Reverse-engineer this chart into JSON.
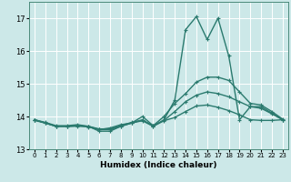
{
  "xlabel": "Humidex (Indice chaleur)",
  "bg_color": "#cce8e8",
  "grid_color": "#ffffff",
  "line_color": "#2a7a6e",
  "xlim": [
    -0.5,
    23.5
  ],
  "ylim": [
    13.0,
    17.5
  ],
  "yticks": [
    13,
    14,
    15,
    16,
    17
  ],
  "xticks": [
    0,
    1,
    2,
    3,
    4,
    5,
    6,
    7,
    8,
    9,
    10,
    11,
    12,
    13,
    14,
    15,
    16,
    17,
    18,
    19,
    20,
    21,
    22,
    23
  ],
  "series": [
    {
      "x": [
        0,
        1,
        2,
        3,
        4,
        5,
        6,
        7,
        8,
        9,
        10,
        11,
        12,
        13,
        14,
        15,
        16,
        17,
        18,
        19,
        20,
        21,
        22,
        23
      ],
      "y": [
        13.9,
        13.8,
        13.7,
        13.7,
        13.7,
        13.7,
        13.55,
        13.55,
        13.7,
        13.8,
        13.9,
        13.7,
        13.9,
        14.5,
        16.65,
        17.05,
        16.35,
        17.0,
        15.85,
        13.9,
        14.3,
        14.3,
        14.1,
        13.9
      ]
    },
    {
      "x": [
        0,
        1,
        2,
        3,
        4,
        5,
        6,
        7,
        8,
        9,
        10,
        11,
        12,
        13,
        14,
        15,
        16,
        17,
        18,
        19,
        20,
        21,
        22,
        23
      ],
      "y": [
        13.9,
        13.8,
        13.7,
        13.7,
        13.72,
        13.7,
        13.6,
        13.65,
        13.75,
        13.8,
        14.0,
        13.72,
        14.0,
        14.4,
        14.7,
        15.05,
        15.2,
        15.2,
        15.1,
        14.75,
        14.4,
        14.35,
        14.15,
        13.92
      ]
    },
    {
      "x": [
        0,
        1,
        2,
        3,
        4,
        5,
        6,
        7,
        8,
        9,
        10,
        11,
        12,
        13,
        14,
        15,
        16,
        17,
        18,
        19,
        20,
        21,
        22,
        23
      ],
      "y": [
        13.9,
        13.82,
        13.72,
        13.72,
        13.75,
        13.7,
        13.62,
        13.62,
        13.72,
        13.82,
        13.88,
        13.72,
        13.88,
        14.15,
        14.45,
        14.65,
        14.75,
        14.7,
        14.6,
        14.45,
        14.3,
        14.25,
        14.08,
        13.9
      ]
    },
    {
      "x": [
        0,
        1,
        2,
        3,
        4,
        5,
        6,
        7,
        8,
        9,
        10,
        11,
        12,
        13,
        14,
        15,
        16,
        17,
        18,
        19,
        20,
        21,
        22,
        23
      ],
      "y": [
        13.88,
        13.8,
        13.7,
        13.7,
        13.72,
        13.68,
        13.6,
        13.6,
        13.7,
        13.8,
        13.87,
        13.7,
        13.87,
        13.97,
        14.15,
        14.32,
        14.35,
        14.28,
        14.18,
        14.05,
        13.9,
        13.88,
        13.88,
        13.9
      ]
    }
  ]
}
